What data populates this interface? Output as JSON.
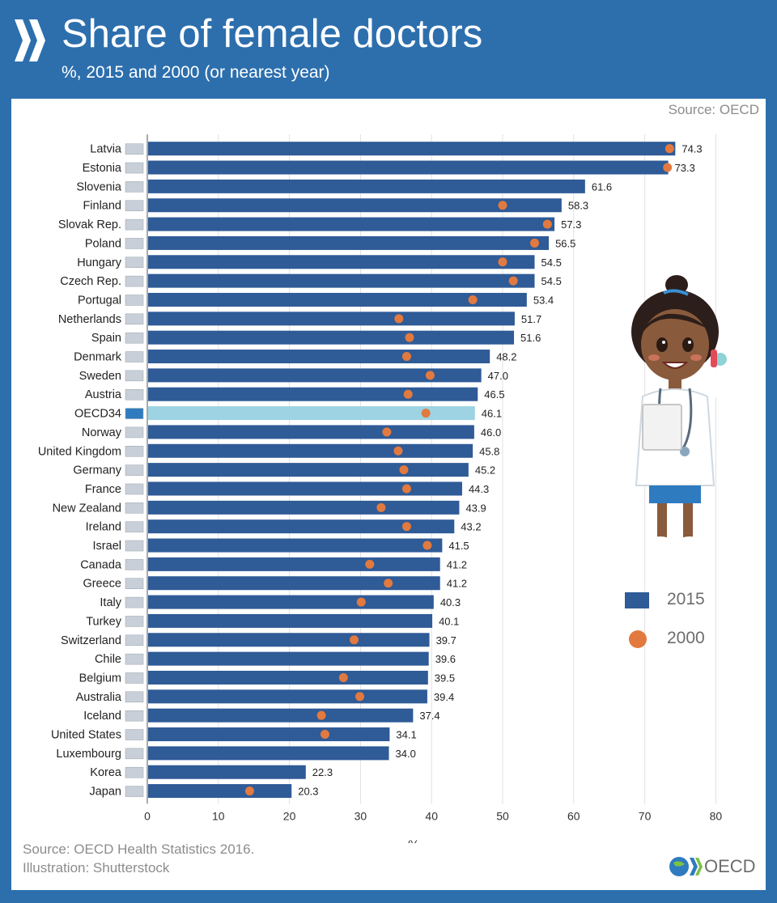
{
  "header": {
    "title": "Share of female doctors",
    "subtitle": "%, 2015 and 2000 (or nearest year)"
  },
  "source_top": "Source: OECD",
  "footer": {
    "source": "Source: OECD Health Statistics 2016.",
    "illustration": "Illustration: Shutterstock",
    "logo_text": "OECD"
  },
  "colors": {
    "background": "#2d6fad",
    "bar_2015": "#2f5b97",
    "bar_oecd": "#9dd3e3",
    "dot_2000": "#e27a3f"
  },
  "chart_data": {
    "type": "bar",
    "orientation": "horizontal",
    "title": "Share of female doctors",
    "xlabel": "%",
    "xlim": [
      0,
      80
    ],
    "xticks": [
      0,
      10,
      20,
      30,
      40,
      50,
      60,
      70,
      80
    ],
    "grid": true,
    "legend": "right",
    "categories": [
      "Latvia",
      "Estonia",
      "Slovenia",
      "Finland",
      "Slovak Rep.",
      "Poland",
      "Hungary",
      "Czech Rep.",
      "Portugal",
      "Netherlands",
      "Spain",
      "Denmark",
      "Sweden",
      "Austria",
      "OECD34",
      "Norway",
      "United Kingdom",
      "Germany",
      "France",
      "New Zealand",
      "Ireland",
      "Israel",
      "Canada",
      "Greece",
      "Italy",
      "Turkey",
      "Switzerland",
      "Chile",
      "Belgium",
      "Australia",
      "Iceland",
      "United States",
      "Luxembourg",
      "Korea",
      "Japan"
    ],
    "highlight": "OECD34",
    "series": [
      {
        "name": "2015",
        "mark": "bar",
        "values": [
          74.3,
          73.3,
          61.6,
          58.3,
          57.3,
          56.5,
          54.5,
          54.5,
          53.4,
          51.7,
          51.6,
          48.2,
          47.0,
          46.5,
          46.1,
          46.0,
          45.8,
          45.2,
          44.3,
          43.9,
          43.2,
          41.5,
          41.2,
          41.2,
          40.3,
          40.1,
          39.7,
          39.6,
          39.5,
          39.4,
          37.4,
          34.1,
          34.0,
          22.3,
          20.3
        ],
        "labels": [
          "74.3",
          "73.3",
          "61.6",
          "58.3",
          "57.3",
          "56.5",
          "54.5",
          "54.5",
          "53.4",
          "51.7",
          "51.6",
          "48.2",
          "47.0",
          "46.5",
          "46.1",
          "46.0",
          "45.8",
          "45.2",
          "44.3",
          "43.9",
          "43.2",
          "41.5",
          "41.2",
          "41.2",
          "40.3",
          "40.1",
          "39.7",
          "39.6",
          "39.5",
          "39.4",
          "37.4",
          "34.1",
          "34.0",
          "22.3",
          "20.3"
        ]
      },
      {
        "name": "2000",
        "mark": "dot",
        "values": [
          73.5,
          73.2,
          null,
          50.0,
          56.3,
          54.5,
          50.0,
          51.5,
          45.8,
          35.4,
          36.9,
          36.5,
          39.8,
          36.7,
          39.2,
          33.7,
          35.3,
          36.1,
          36.5,
          32.9,
          36.5,
          39.4,
          31.3,
          33.9,
          30.1,
          null,
          29.1,
          null,
          27.6,
          29.9,
          24.5,
          25.0,
          null,
          null,
          14.4
        ]
      }
    ]
  }
}
